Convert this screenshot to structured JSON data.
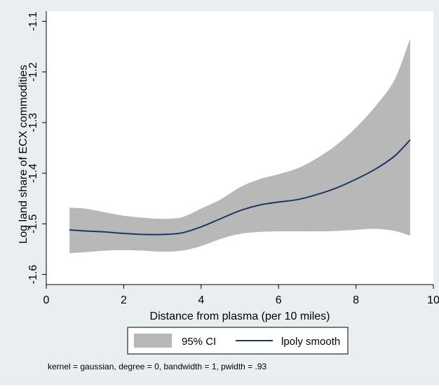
{
  "chart_data": {
    "type": "area",
    "xlabel": "Distance from plasma (per 10 miles)",
    "ylabel": "Log land share of ECX commodities",
    "xlim": [
      0,
      10
    ],
    "ylim": [
      -1.62,
      -1.08
    ],
    "xticks": [
      0,
      2,
      4,
      6,
      8,
      10
    ],
    "yticks": [
      -1.6,
      -1.5,
      -1.4,
      -1.3,
      -1.2,
      -1.1
    ],
    "x_tick_labels": [
      "0",
      "2",
      "4",
      "6",
      "8",
      "10"
    ],
    "y_tick_labels": [
      "-1.6",
      "-1.5",
      "-1.4",
      "-1.3",
      "-1.2",
      "-1.1"
    ],
    "grid": false,
    "legend_position": "bottom",
    "note": "kernel = gaussian, degree = 0, bandwidth = 1, pwidth = .93",
    "series": [
      {
        "name": "95% CI",
        "color": "#b8b8b8",
        "x": [
          0.6,
          1.0,
          1.5,
          2.0,
          2.5,
          3.0,
          3.5,
          4.0,
          4.5,
          5.0,
          5.5,
          6.0,
          6.5,
          7.0,
          7.5,
          8.0,
          8.5,
          9.0,
          9.4
        ],
        "lower": [
          -1.558,
          -1.556,
          -1.553,
          -1.552,
          -1.553,
          -1.555,
          -1.553,
          -1.544,
          -1.53,
          -1.52,
          -1.516,
          -1.515,
          -1.515,
          -1.515,
          -1.514,
          -1.512,
          -1.51,
          -1.514,
          -1.523
        ],
        "upper": [
          -1.468,
          -1.47,
          -1.477,
          -1.484,
          -1.488,
          -1.49,
          -1.487,
          -1.47,
          -1.452,
          -1.428,
          -1.412,
          -1.402,
          -1.39,
          -1.37,
          -1.344,
          -1.31,
          -1.268,
          -1.215,
          -1.134
        ]
      },
      {
        "name": "lpoly smooth",
        "color": "#1a3a66",
        "x": [
          0.6,
          1.0,
          1.5,
          2.0,
          2.5,
          3.0,
          3.5,
          4.0,
          4.5,
          5.0,
          5.5,
          6.0,
          6.5,
          7.0,
          7.5,
          8.0,
          8.5,
          9.0,
          9.4
        ],
        "y": [
          -1.512,
          -1.514,
          -1.516,
          -1.519,
          -1.521,
          -1.521,
          -1.518,
          -1.506,
          -1.49,
          -1.474,
          -1.463,
          -1.457,
          -1.452,
          -1.442,
          -1.429,
          -1.412,
          -1.392,
          -1.366,
          -1.334
        ]
      }
    ]
  }
}
